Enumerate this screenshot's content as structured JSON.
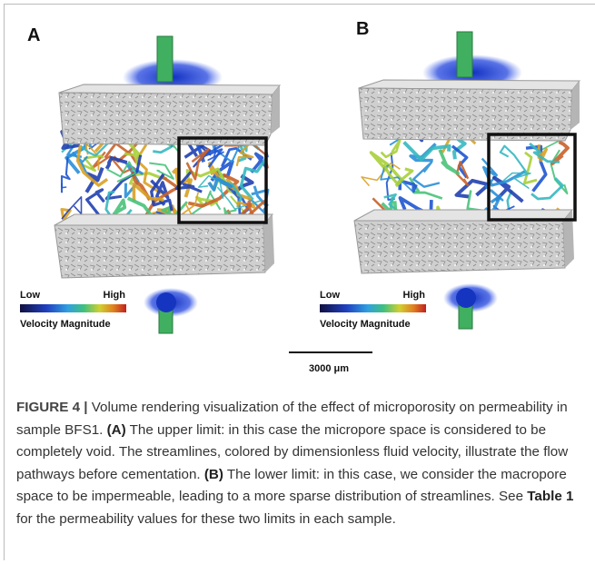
{
  "panels": [
    {
      "label": "A",
      "legend": {
        "low": "Low",
        "high": "High",
        "title": "Velocity Magnitude"
      }
    },
    {
      "label": "B",
      "legend": {
        "low": "Low",
        "high": "High",
        "title": "Velocity Magnitude"
      }
    }
  ],
  "scale_bar": "3000 μm",
  "caption": {
    "segments": [
      {
        "text": "FIGURE 4 |",
        "bold": true
      },
      {
        "text": " Volume rendering visualization of the effect of microporosity on permeability in sample BFS1. ",
        "bold": false
      },
      {
        "text": "(A)",
        "bold": true
      },
      {
        "text": " The upper limit: in this case the micropore space is considered to be completely void. The streamlines, colored by dimensionless fluid velocity, illustrate the flow pathways before cementation. ",
        "bold": false
      },
      {
        "text": "(B)",
        "bold": true
      },
      {
        "text": " The lower limit: in this case, we consider the macropore space to be impermeable, leading to a more sparse distribution of streamlines. See ",
        "bold": false
      },
      {
        "text": "Table 1",
        "bold": true
      },
      {
        "text": " for the permeability values for these two limits in each sample.",
        "bold": false
      }
    ]
  }
}
